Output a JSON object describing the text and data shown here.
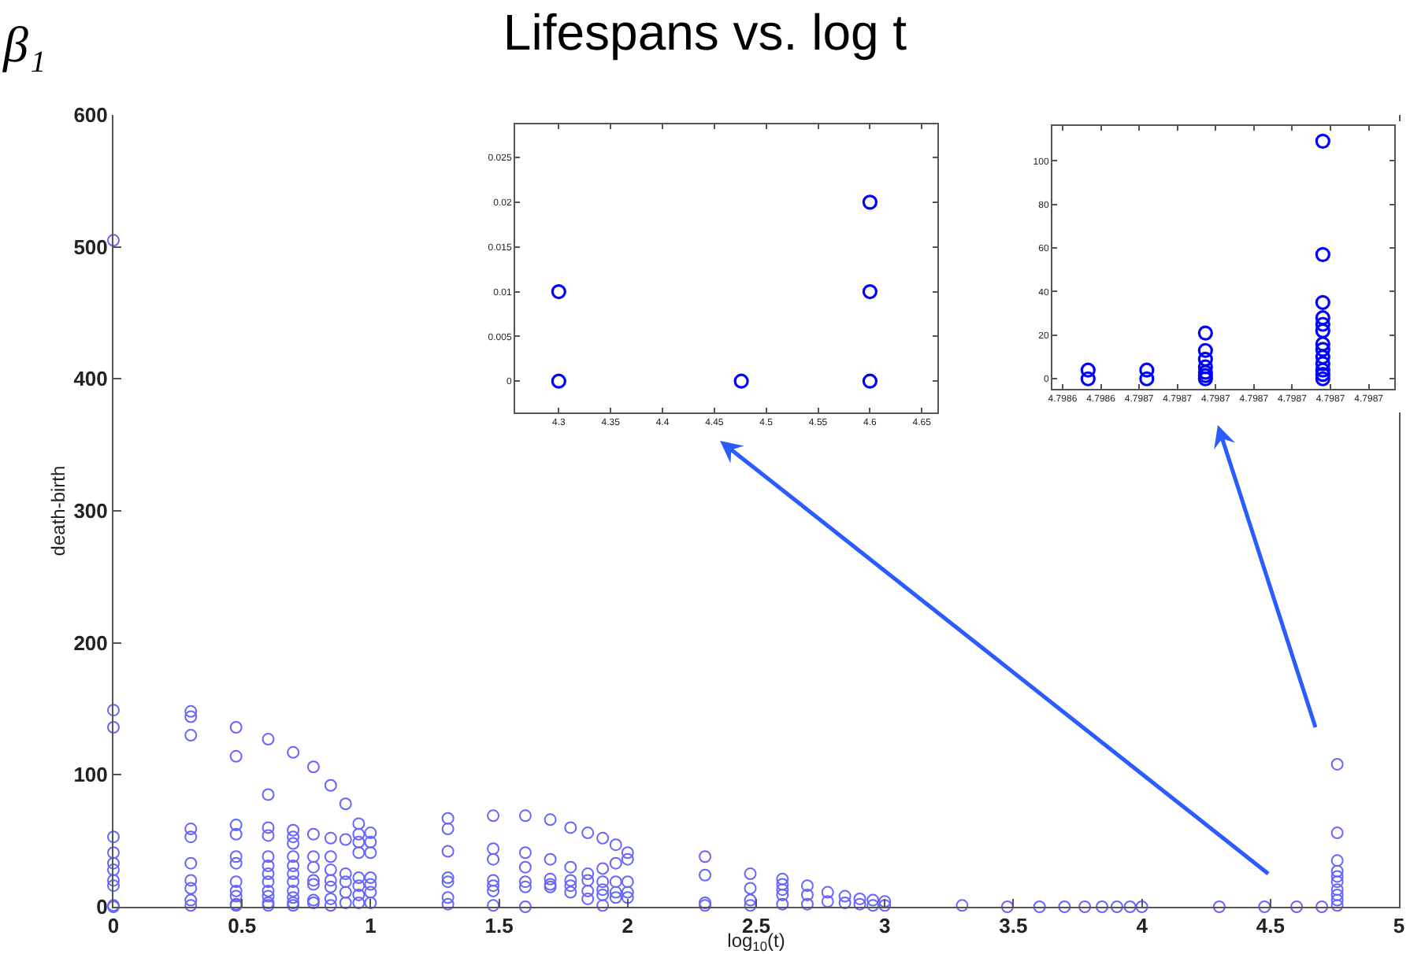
{
  "chart_data": [
    {
      "type": "scatter",
      "title": "Lifespans vs. log t",
      "xlabel": "log$_{10}$(t)",
      "ylabel": "death-birth",
      "annotations": [
        "β₁"
      ],
      "marker": "circle",
      "grid": false,
      "xlim": [
        0,
        5
      ],
      "ylim": [
        0,
        600
      ],
      "xticks": [
        0,
        0.5,
        1,
        1.5,
        2,
        2.5,
        3,
        3.5,
        4,
        4.5,
        5
      ],
      "yticks": [
        0,
        100,
        200,
        300,
        400,
        500,
        600
      ],
      "series": [
        {
          "color": "#3333ff",
          "x": [
            0,
            0,
            0,
            0,
            0,
            0,
            0,
            0,
            0,
            0,
            0,
            0.301,
            0.301,
            0.301,
            0.301,
            0.301,
            0.301,
            0.301,
            0.301,
            0.301,
            0.301,
            0.477,
            0.477,
            0.477,
            0.477,
            0.477,
            0.477,
            0.477,
            0.477,
            0.477,
            0.477,
            0.477,
            0.602,
            0.602,
            0.602,
            0.602,
            0.602,
            0.602,
            0.602,
            0.602,
            0.602,
            0.602,
            0.602,
            0.602,
            0.699,
            0.699,
            0.699,
            0.699,
            0.699,
            0.699,
            0.699,
            0.699,
            0.699,
            0.699,
            0.699,
            0.699,
            0.778,
            0.778,
            0.778,
            0.778,
            0.778,
            0.778,
            0.778,
            0.778,
            0.845,
            0.845,
            0.845,
            0.845,
            0.845,
            0.845,
            0.845,
            0.845,
            0.903,
            0.903,
            0.903,
            0.903,
            0.903,
            0.903,
            0.954,
            0.954,
            0.954,
            0.954,
            0.954,
            0.954,
            0.954,
            0.954,
            1,
            1,
            1,
            1,
            1,
            1,
            1,
            1.301,
            1.301,
            1.301,
            1.301,
            1.301,
            1.301,
            1.301,
            1.477,
            1.477,
            1.477,
            1.477,
            1.477,
            1.477,
            1.477,
            1.602,
            1.602,
            1.602,
            1.602,
            1.602,
            1.602,
            1.699,
            1.699,
            1.699,
            1.699,
            1.699,
            1.778,
            1.778,
            1.778,
            1.778,
            1.778,
            1.845,
            1.845,
            1.845,
            1.845,
            1.845,
            1.903,
            1.903,
            1.903,
            1.903,
            1.903,
            1.903,
            1.954,
            1.954,
            1.954,
            1.954,
            1.954,
            2,
            2,
            2,
            2,
            2,
            2.301,
            2.301,
            2.301,
            2.301,
            2.477,
            2.477,
            2.477,
            2.477,
            2.602,
            2.602,
            2.602,
            2.602,
            2.602,
            2.699,
            2.699,
            2.699,
            2.778,
            2.778,
            2.845,
            2.845,
            2.903,
            2.903,
            2.954,
            2.954,
            3,
            3,
            3.301,
            3.477,
            3.602,
            3.699,
            3.778,
            3.845,
            3.903,
            3.954,
            4,
            4.301,
            4.477,
            4.602,
            4.7,
            4.76,
            4.76,
            4.76,
            4.76,
            4.76,
            4.76,
            4.76,
            4.76,
            4.76,
            4.76
          ],
          "values": [
            505,
            149,
            136,
            53,
            41,
            33,
            28,
            20,
            16,
            1,
            0,
            148,
            144,
            130,
            59,
            53,
            33,
            20,
            14,
            5,
            1,
            136,
            114,
            62,
            55,
            38,
            33,
            19,
            12,
            8,
            2,
            1,
            127,
            85,
            60,
            54,
            38,
            31,
            25,
            19,
            12,
            8,
            3,
            1,
            117,
            58,
            53,
            48,
            38,
            31,
            25,
            19,
            12,
            7,
            3,
            1,
            106,
            55,
            38,
            30,
            20,
            17,
            5,
            3,
            92,
            52,
            38,
            28,
            20,
            15,
            6,
            1,
            78,
            51,
            25,
            19,
            11,
            3,
            63,
            55,
            49,
            41,
            22,
            16,
            9,
            3,
            56,
            49,
            41,
            22,
            17,
            11,
            3,
            67,
            59,
            42,
            22,
            19,
            7,
            2,
            69,
            44,
            36,
            20,
            16,
            12,
            1,
            69,
            41,
            30,
            19,
            15,
            0,
            66,
            36,
            21,
            17,
            15,
            60,
            30,
            20,
            16,
            11,
            56,
            25,
            20,
            12,
            6,
            52,
            29,
            19,
            13,
            9,
            1,
            47,
            33,
            19,
            11,
            7,
            41,
            36,
            19,
            11,
            7,
            38,
            24,
            3,
            1,
            25,
            14,
            5,
            1,
            21,
            17,
            13,
            9,
            2,
            16,
            9,
            2,
            11,
            4,
            8,
            3,
            6,
            2,
            5,
            1,
            4,
            1,
            1,
            0,
            0,
            0,
            0,
            0,
            0,
            0,
            0,
            0,
            0,
            0,
            0,
            108,
            56,
            35,
            27,
            23,
            19,
            13,
            9,
            5,
            1
          ]
        }
      ]
    },
    {
      "type": "scatter",
      "marker": "circle",
      "grid": false,
      "xlim": [
        4.258,
        4.665
      ],
      "ylim": [
        -0.0035,
        0.0287
      ],
      "xticks": [
        4.3,
        4.35,
        4.4,
        4.45,
        4.5,
        4.55,
        4.6,
        4.65
      ],
      "yticks": [
        0,
        0.005,
        0.01,
        0.015,
        0.02,
        0.025
      ],
      "series": [
        {
          "color": "#0000ff",
          "x": [
            4.3,
            4.3,
            4.476,
            4.6,
            4.6,
            4.6
          ],
          "values": [
            0.01,
            0,
            0,
            0.02,
            0.01,
            0
          ]
        }
      ]
    },
    {
      "type": "scatter",
      "marker": "circle",
      "grid": false,
      "xlim": [
        4.798616,
        4.79875
      ],
      "ylim": [
        -4.6,
        116
      ],
      "yticks": [
        0,
        20,
        40,
        60,
        80,
        100
      ],
      "xticks": [
        {
          "value": 4.79862,
          "label": "4.7986"
        },
        {
          "value": 4.798635,
          "label": "4.7986"
        },
        {
          "value": 4.79865,
          "label": "4.7987"
        },
        {
          "value": 4.798665,
          "label": "4.7987"
        },
        {
          "value": 4.79868,
          "label": "4.7987"
        },
        {
          "value": 4.798695,
          "label": "4.7987"
        },
        {
          "value": 4.79871,
          "label": "4.7987"
        },
        {
          "value": 4.798725,
          "label": "4.7987"
        },
        {
          "value": 4.79874,
          "label": "4.7987"
        }
      ],
      "series": [
        {
          "color": "#0000ff",
          "x": [
            4.79863,
            4.79863,
            4.798653,
            4.798653,
            4.798676,
            4.798676,
            4.798676,
            4.798676,
            4.798676,
            4.798676,
            4.798676,
            4.798722,
            4.798722,
            4.798722,
            4.798722,
            4.798722,
            4.798722,
            4.798722,
            4.798722,
            4.798722,
            4.798722,
            4.798722,
            4.798722,
            4.798722
          ],
          "values": [
            0,
            4,
            0,
            4,
            21,
            13,
            9,
            5.5,
            3,
            1.5,
            0,
            109,
            57,
            35,
            28,
            25,
            22,
            16,
            13.5,
            10,
            7,
            4,
            2,
            0
          ]
        }
      ]
    }
  ]
}
